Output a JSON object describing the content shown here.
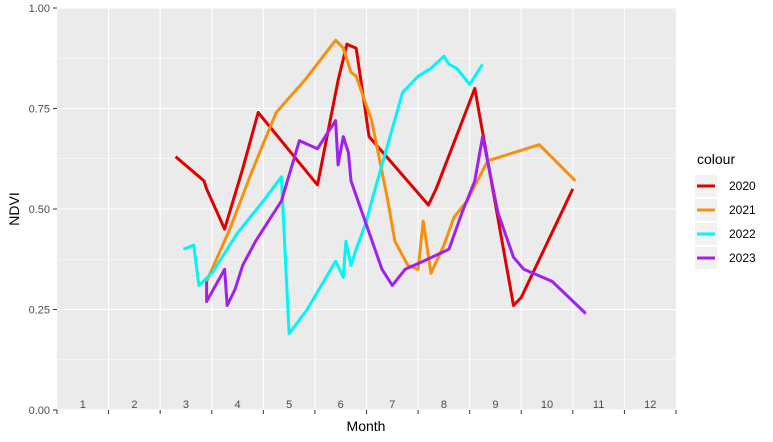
{
  "chart_data": {
    "type": "line",
    "title": "",
    "xlabel": "Month",
    "ylabel": "NDVI",
    "xlim": [
      0.5,
      12.5
    ],
    "ylim": [
      0,
      1
    ],
    "x_tick_labels": [
      "1",
      "2",
      "3",
      "4",
      "5",
      "6",
      "7",
      "8",
      "9",
      "10",
      "11",
      "12"
    ],
    "y_ticks": [
      0.0,
      0.25,
      0.5,
      0.75,
      1.0
    ],
    "y_tick_labels": [
      "0.00",
      "0.25",
      "0.50",
      "0.75",
      "1.00"
    ],
    "grid": true,
    "legend": {
      "title": "colour",
      "position": "right"
    },
    "series": [
      {
        "name": "2020",
        "color": "#e00000",
        "x": [
          2.8,
          3.35,
          3.4,
          3.75,
          4.1,
          4.4,
          5.1,
          5.55,
          5.95,
          6.12,
          6.3,
          6.55,
          7.7,
          7.85,
          8.3,
          8.6,
          9.35,
          9.5,
          10.5
        ],
        "y": [
          0.63,
          0.57,
          0.55,
          0.45,
          0.6,
          0.74,
          0.63,
          0.56,
          0.82,
          0.91,
          0.9,
          0.68,
          0.51,
          0.55,
          0.7,
          0.8,
          0.26,
          0.28,
          0.55
        ]
      },
      {
        "name": "2021",
        "color": "#f7900f",
        "x": [
          3.4,
          3.85,
          4.3,
          4.75,
          5.3,
          5.9,
          6.05,
          6.2,
          6.3,
          6.6,
          6.9,
          7.05,
          7.3,
          7.5,
          7.6,
          7.75,
          8.0,
          8.2,
          8.45,
          8.85,
          9.85,
          10.55
        ],
        "y": [
          0.32,
          0.45,
          0.6,
          0.74,
          0.82,
          0.92,
          0.9,
          0.84,
          0.83,
          0.72,
          0.53,
          0.42,
          0.36,
          0.35,
          0.47,
          0.34,
          0.41,
          0.48,
          0.52,
          0.62,
          0.66,
          0.57
        ]
      },
      {
        "name": "2022",
        "color": "#00f5f5",
        "x": [
          2.95,
          3.15,
          3.25,
          3.5,
          4.0,
          4.5,
          4.85,
          5.0,
          5.35,
          5.9,
          6.05,
          6.1,
          6.2,
          6.3,
          6.5,
          6.6,
          7.2,
          7.5,
          7.75,
          8.0,
          8.1,
          8.25,
          8.5,
          8.75
        ],
        "y": [
          0.4,
          0.41,
          0.31,
          0.34,
          0.44,
          0.52,
          0.58,
          0.19,
          0.25,
          0.37,
          0.33,
          0.42,
          0.36,
          0.4,
          0.47,
          0.52,
          0.79,
          0.83,
          0.85,
          0.88,
          0.86,
          0.85,
          0.81,
          0.86
        ]
      },
      {
        "name": "2023",
        "color": "#a020f0",
        "x": [
          3.4,
          3.4,
          3.75,
          3.8,
          3.95,
          4.1,
          4.35,
          4.85,
          5.2,
          5.55,
          5.75,
          5.9,
          5.95,
          6.05,
          6.15,
          6.2,
          6.8,
          7.0,
          7.25,
          7.6,
          8.1,
          8.35,
          8.6,
          8.75,
          9.05,
          9.35,
          9.55,
          10.1,
          10.75
        ],
        "y": [
          0.32,
          0.27,
          0.35,
          0.26,
          0.3,
          0.36,
          0.42,
          0.52,
          0.67,
          0.65,
          0.69,
          0.72,
          0.61,
          0.68,
          0.64,
          0.57,
          0.35,
          0.31,
          0.35,
          0.37,
          0.4,
          0.49,
          0.57,
          0.68,
          0.49,
          0.38,
          0.35,
          0.32,
          0.24
        ]
      }
    ]
  }
}
